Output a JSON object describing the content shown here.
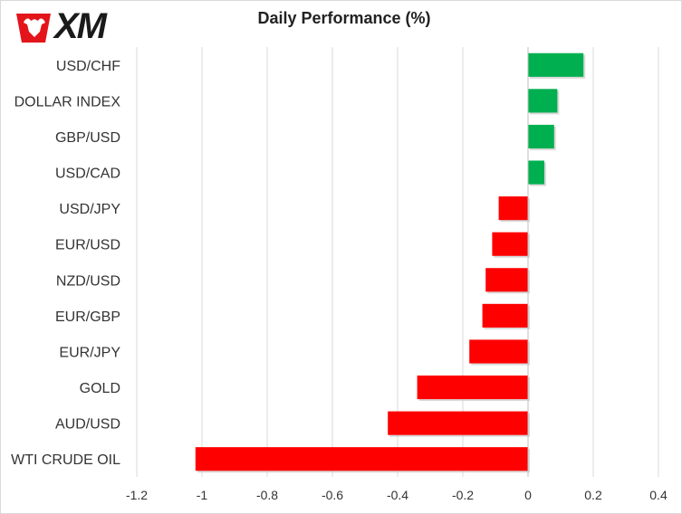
{
  "logo": {
    "text": "XM",
    "icon": "bull-logo-icon",
    "color": "#e3151b"
  },
  "chart_data": {
    "type": "bar",
    "orientation": "horizontal",
    "title": "Daily Performance  (%)",
    "xlabel": "",
    "ylabel": "",
    "xlim": [
      -1.2,
      0.4
    ],
    "grid": true,
    "legend": "none",
    "tick_labels": [
      "-1.2",
      "-1",
      "-0.8",
      "-0.6",
      "-0.4",
      "-0.2",
      "0",
      "0.2",
      "0.4"
    ],
    "categories": [
      "USD/CHF",
      "DOLLAR INDEX",
      "GBP/USD",
      "USD/CAD",
      "USD/JPY",
      "EUR/USD",
      "NZD/USD",
      "EUR/GBP",
      "EUR/JPY",
      "GOLD",
      "AUD/USD",
      "WTI CRUDE OIL"
    ],
    "values": [
      0.17,
      0.09,
      0.08,
      0.05,
      -0.09,
      -0.11,
      -0.13,
      -0.14,
      -0.18,
      -0.34,
      -0.43,
      -1.02
    ],
    "colors": {
      "positive": "#00b050",
      "negative": "#ff0000"
    }
  }
}
